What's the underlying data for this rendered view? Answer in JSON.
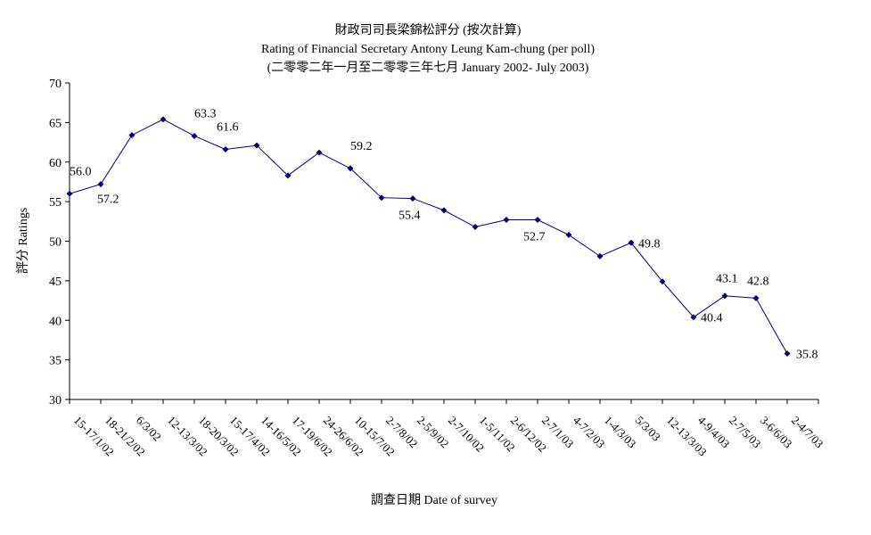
{
  "chart_data": {
    "type": "line",
    "title": "財政司司長梁錦松評分 (按次計算)",
    "subtitle": "Rating of Financial Secretary Antony Leung Kam-chung  (per poll)",
    "subtitle2": "(二零零二年一月至二零零三年七月 January 2002- July 2003)",
    "xlabel": "調查日期 Date of survey",
    "ylabel": "評分 Ratings",
    "ylim": [
      30,
      70
    ],
    "yticks": [
      30,
      35,
      40,
      45,
      50,
      55,
      60,
      65,
      70
    ],
    "categories": [
      "15-17/1/02",
      "18-21/2/02",
      "6/3/02",
      "12-13/3/02",
      "18-20/3/02",
      "15-17/4/02",
      "14-16/5/02",
      "17-19/6/02",
      "24-26/6/02",
      "10-15/7/02",
      "2-7/8/02",
      "2-5/9/02",
      "2-7/10/02",
      "1-5/11/02",
      "2-6/12/02",
      "2-7/1/03",
      "4-7/2/03",
      "1-4/3/03",
      "5/3/03",
      "12-13/3/03",
      "4-9/4/03",
      "2-7/5/03",
      "3-6/6/03",
      "2-4/7/03"
    ],
    "values": [
      56.0,
      57.2,
      63.4,
      65.4,
      63.3,
      61.6,
      62.1,
      58.3,
      61.2,
      59.2,
      55.5,
      55.4,
      53.9,
      51.8,
      52.7,
      52.7,
      50.8,
      48.1,
      49.8,
      44.9,
      40.4,
      43.1,
      42.8,
      35.8
    ],
    "data_labels": [
      {
        "index": 0,
        "text": "56.0"
      },
      {
        "index": 1,
        "text": "57.2"
      },
      {
        "index": 4,
        "text": "63.3"
      },
      {
        "index": 5,
        "text": "61.6"
      },
      {
        "index": 9,
        "text": "59.2"
      },
      {
        "index": 11,
        "text": "55.4"
      },
      {
        "index": 15,
        "text": "52.7"
      },
      {
        "index": 18,
        "text": "49.8"
      },
      {
        "index": 20,
        "text": "40.4"
      },
      {
        "index": 21,
        "text": "43.1"
      },
      {
        "index": 22,
        "text": "42.8"
      },
      {
        "index": 23,
        "text": "35.8"
      }
    ],
    "grid": false,
    "legend": "none",
    "line_color": "#00007f",
    "marker": "diamond"
  }
}
